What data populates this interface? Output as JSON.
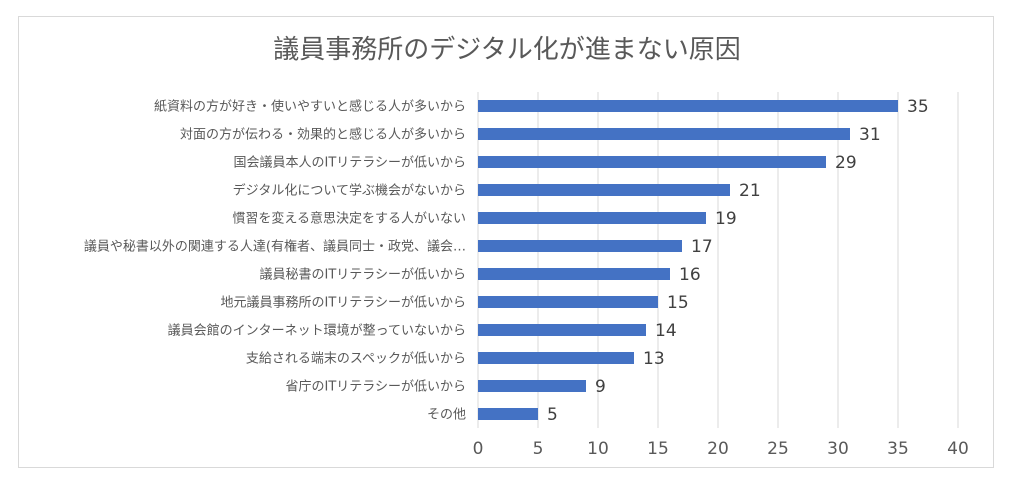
{
  "chart_data": {
    "type": "bar",
    "orientation": "horizontal",
    "title": "議員事務所のデジタル化が進まない原因",
    "categories": [
      "紙資料の方が好き・使いやすいと感じる人が多いから",
      "対面の方が伝わる・効果的と感じる人が多いから",
      "国会議員本人のITリテラシーが低いから",
      "デジタル化について学ぶ機会がないから",
      "慣習を変える意思決定をする人がいない",
      "議員や秘書以外の関連する人達(有権者、議員同士・政党、議会…",
      "議員秘書のITリテラシーが低いから",
      "地元議員事務所のITリテラシーが低いから",
      "議員会館のインターネット環境が整っていないから",
      "支給される端末のスペックが低いから",
      "省庁のITリテラシーが低いから",
      "その他"
    ],
    "values": [
      35,
      31,
      29,
      21,
      19,
      17,
      16,
      15,
      14,
      13,
      9,
      5
    ],
    "xlim": [
      0,
      40
    ],
    "xticks": [
      0,
      5,
      10,
      15,
      20,
      25,
      30,
      35,
      40
    ],
    "grid": "vertical",
    "bar_color": "#4472c4",
    "data_labels": true
  }
}
